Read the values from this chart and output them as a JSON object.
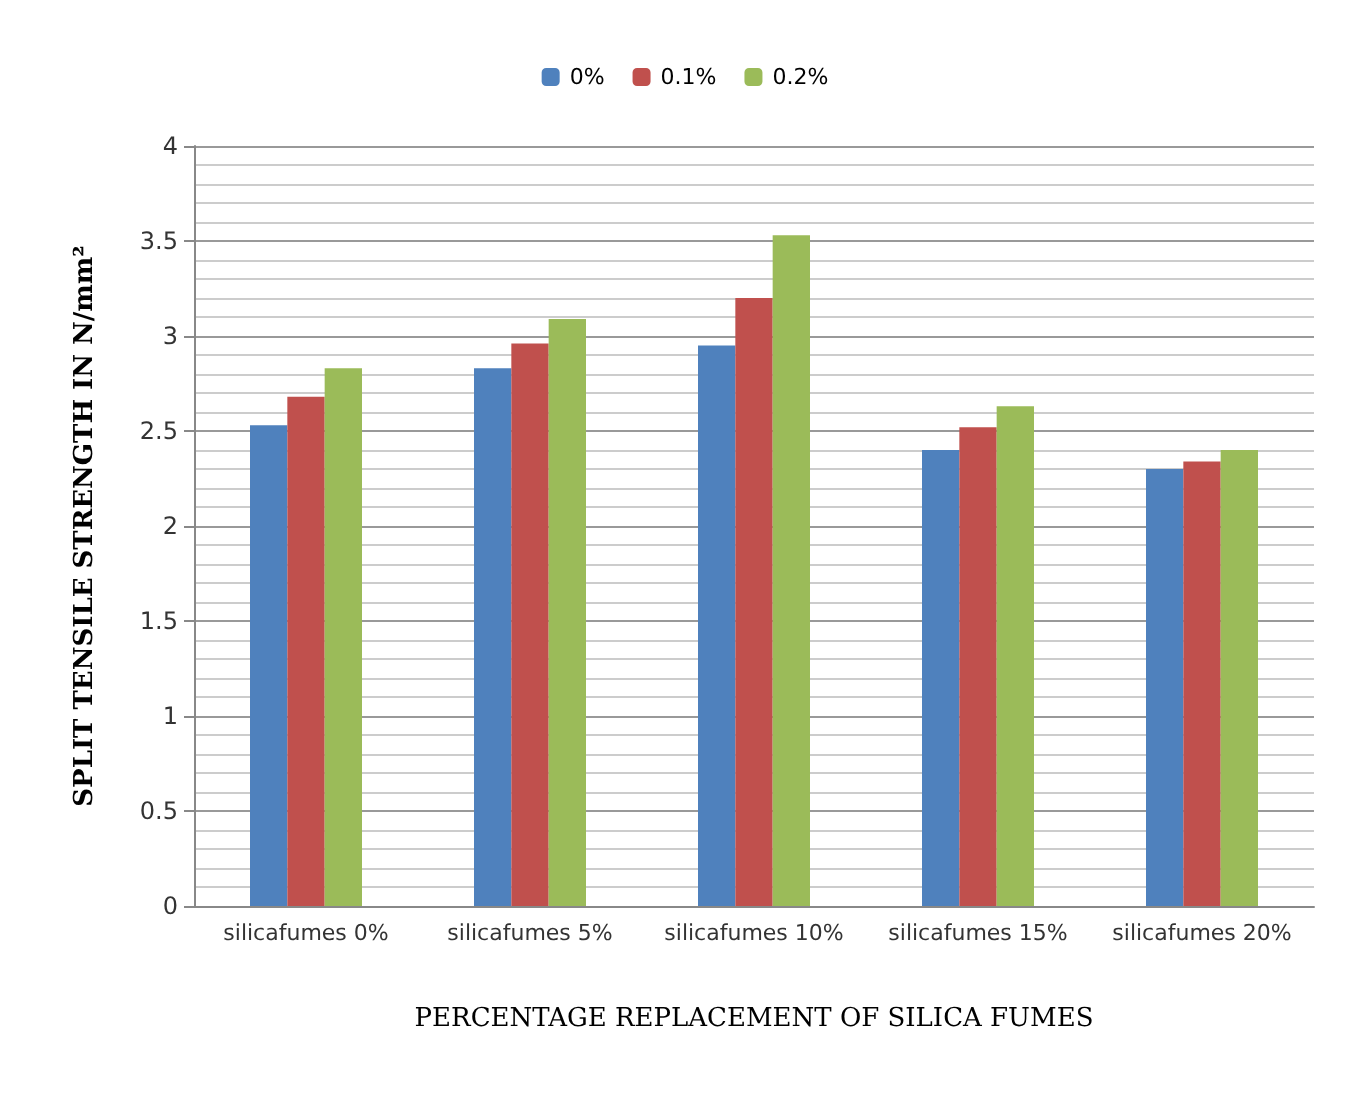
{
  "chart_data": {
    "type": "bar",
    "xlabel": "PERCENTAGE REPLACEMENT OF SILICA FUMES",
    "ylabel": "SPLIT TENSILE STRENGTH IN N/mm²",
    "categories": [
      "silicafumes 0%",
      "silicafumes 5%",
      "silicafumes 10%",
      "silicafumes 15%",
      "silicafumes 20%"
    ],
    "series": [
      {
        "name": "0%",
        "color": "#4f81bd",
        "values": [
          2.53,
          2.83,
          2.95,
          2.4,
          2.3
        ]
      },
      {
        "name": "0.1%",
        "color": "#c0504d",
        "values": [
          2.68,
          2.96,
          3.2,
          2.52,
          2.34
        ]
      },
      {
        "name": "0.2%",
        "color": "#9bbb59",
        "values": [
          2.83,
          3.09,
          3.53,
          2.63,
          2.4
        ]
      }
    ],
    "ylim": [
      0,
      4
    ],
    "yticks": [
      0,
      0.5,
      1,
      1.5,
      2,
      2.5,
      3,
      3.5,
      4
    ],
    "grid": "y",
    "legend": "top"
  }
}
